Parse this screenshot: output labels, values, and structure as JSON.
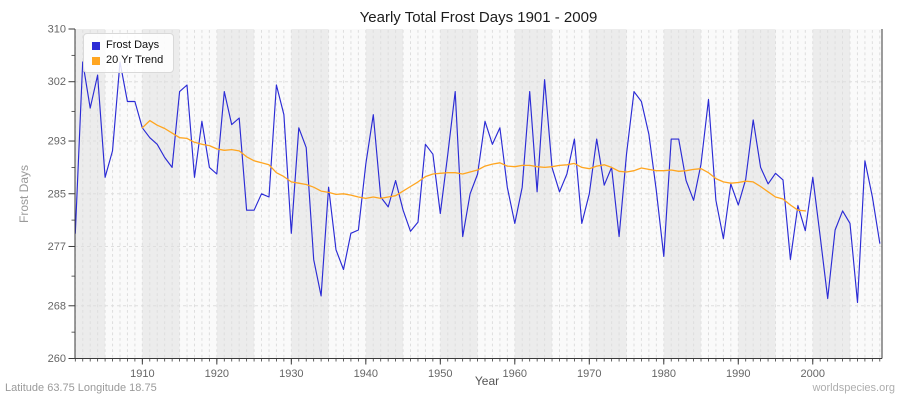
{
  "page": {
    "footer_left": "Latitude 63.75 Longitude 18.75",
    "footer_right": "worldspecies.org"
  },
  "chart_data": {
    "type": "line",
    "title": "Yearly Total Frost Days 1901 - 2009",
    "xlabel": "Year",
    "ylabel": "Frost Days",
    "xlim": [
      1901,
      2009
    ],
    "ylim": [
      260,
      310
    ],
    "yticks": [
      260,
      268,
      277,
      285,
      293,
      302,
      310
    ],
    "xticks": [
      1910,
      1920,
      1930,
      1940,
      1950,
      1960,
      1970,
      1980,
      1990,
      2000
    ],
    "grid": true,
    "legend_position": "top-left",
    "band_color": "#ececec",
    "band_alt_color": "#fafafa",
    "grid_color": "#dedede",
    "axis_color": "#3a3a3a",
    "tick_label_color": "#666666",
    "series": [
      {
        "name": "Frost Days",
        "color": "#2b2bd5",
        "x_start": 1901,
        "values": [
          279,
          305,
          298,
          303,
          287.5,
          291.5,
          305,
          299,
          299,
          295,
          293.5,
          292.5,
          290.5,
          289,
          300.5,
          301.5,
          287.5,
          296,
          289,
          288,
          300.5,
          295.5,
          296.5,
          282.5,
          282.5,
          285,
          284.5,
          301.5,
          297,
          279,
          295,
          292,
          275,
          269.5,
          286,
          276.5,
          273.5,
          279,
          279.5,
          289.5,
          297,
          284.5,
          283,
          287,
          282.5,
          279.3,
          280.7,
          292.5,
          291,
          282,
          291,
          300.5,
          278.5,
          285,
          288,
          296,
          292.5,
          295,
          286,
          280.5,
          286,
          300.5,
          285.3,
          302.3,
          289,
          285.3,
          288,
          293.3,
          280.5,
          285,
          293.3,
          286.3,
          289,
          278.5,
          291,
          300.5,
          299,
          294,
          285.5,
          275.5,
          293.3,
          293.3,
          287,
          284,
          289.5,
          299.3,
          284,
          278.2,
          286.5,
          283.3,
          287.2,
          296.2,
          289,
          286.5,
          288.1,
          287.1,
          275,
          283.2,
          279.4,
          287.5,
          278.5,
          269.1,
          279.5,
          282.4,
          280.5,
          268.5,
          290,
          284.5,
          277.5
        ]
      },
      {
        "name": "20 Yr Trend",
        "color": "#ffa51f",
        "x_start": 1910,
        "values": [
          295.0,
          296.1,
          295.4,
          294.9,
          294.2,
          293.5,
          293.4,
          292.8,
          292.5,
          292.3,
          291.8,
          291.6,
          291.7,
          291.5,
          290.6,
          290.0,
          289.7,
          289.4,
          288.2,
          287.6,
          286.8,
          286.6,
          286.4,
          286.0,
          285.4,
          285.2,
          284.9,
          285.0,
          284.8,
          284.5,
          284.3,
          284.5,
          284.3,
          284.5,
          284.7,
          285.4,
          286.1,
          286.8,
          287.6,
          288.0,
          288.1,
          288.2,
          288.2,
          288.0,
          288.3,
          288.6,
          289.2,
          289.5,
          289.7,
          289.2,
          289.1,
          289.3,
          289.3,
          289.1,
          289.0,
          289.1,
          289.3,
          289.4,
          289.6,
          289.0,
          288.8,
          289.2,
          289.4,
          289.0,
          288.4,
          288.3,
          288.5,
          288.9,
          288.7,
          288.5,
          288.5,
          288.6,
          288.4,
          288.5,
          288.7,
          288.8,
          288.2,
          287.3,
          286.8,
          286.6,
          286.7,
          286.9,
          286.8,
          286.1,
          285.3,
          284.5,
          284.2,
          283.3,
          282.5,
          282.4
        ]
      }
    ]
  }
}
